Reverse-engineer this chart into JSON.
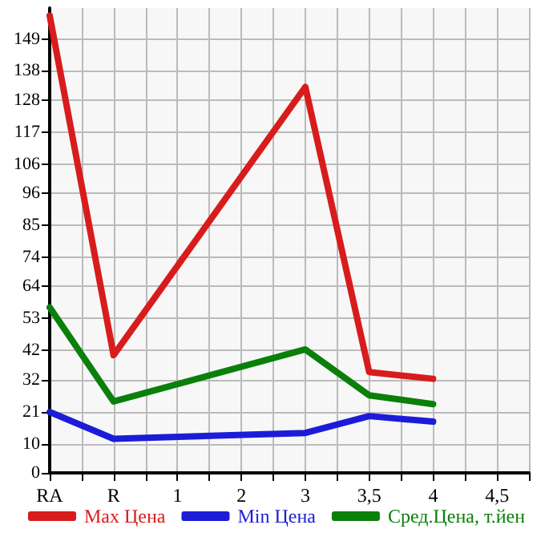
{
  "chart_data": {
    "type": "line",
    "categories": [
      "RA",
      "R",
      "1",
      "2",
      "3",
      "3,5",
      "4",
      "4,5"
    ],
    "series": [
      {
        "name": "Max Цена",
        "color": "#d81c1c",
        "values": [
          157,
          40.4,
          null,
          null,
          132.5,
          34.6,
          32.3,
          null
        ]
      },
      {
        "name": "Min Цена",
        "color": "#1c1cd8",
        "values": [
          20.9,
          11.7,
          null,
          null,
          13.7,
          19.5,
          17.6,
          null
        ]
      },
      {
        "name": "Сред.Цена, т.йен",
        "color": "#0a800a",
        "values": [
          56.8,
          24.5,
          null,
          null,
          42.4,
          26.6,
          23.6,
          null
        ]
      }
    ],
    "ylim": [
      0,
      159.6
    ],
    "yticks": [
      0,
      10,
      21,
      32,
      42,
      53,
      64,
      74,
      85,
      96,
      106,
      117,
      128,
      138,
      149
    ],
    "grid": true,
    "legend": "bottom",
    "marker": "none",
    "line_style": "solid"
  }
}
